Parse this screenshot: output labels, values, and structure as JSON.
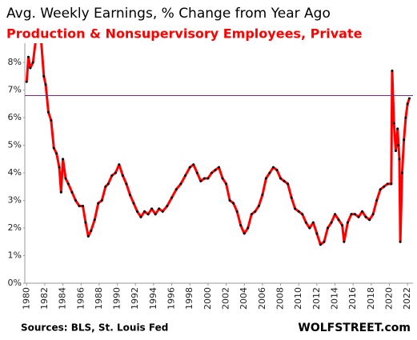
{
  "chart_data": {
    "type": "line",
    "title": "Avg. Weekly Earnings, % Change from Year Ago",
    "subtitle": "Production & Nonsupervisory  Employees, Private",
    "source": "Sources: BLS, St. Louis Fed",
    "brand": "WOLFSTREET.com",
    "x": [
      1980.0,
      1980.2,
      1980.4,
      1980.7,
      1981.0,
      1981.3,
      1981.6,
      1981.9,
      1982.1,
      1982.4,
      1982.7,
      1983.0,
      1983.3,
      1983.6,
      1983.8,
      1984.0,
      1984.3,
      1984.6,
      1985.0,
      1985.4,
      1985.8,
      1986.2,
      1986.5,
      1986.8,
      1987.1,
      1987.5,
      1987.9,
      1988.3,
      1988.7,
      1989.0,
      1989.4,
      1989.8,
      1990.2,
      1990.6,
      1991.0,
      1991.4,
      1991.8,
      1992.2,
      1992.6,
      1993.0,
      1993.4,
      1993.8,
      1994.2,
      1994.6,
      1995.0,
      1995.5,
      1996.0,
      1996.5,
      1997.0,
      1997.5,
      1998.0,
      1998.4,
      1998.8,
      1999.2,
      1999.6,
      2000.0,
      2000.4,
      2000.8,
      2001.2,
      2001.6,
      2002.0,
      2002.4,
      2002.8,
      2003.2,
      2003.6,
      2004.0,
      2004.4,
      2004.8,
      2005.2,
      2005.6,
      2006.0,
      2006.4,
      2006.8,
      2007.2,
      2007.6,
      2008.0,
      2008.4,
      2008.8,
      2009.2,
      2009.6,
      2010.0,
      2010.4,
      2010.8,
      2011.2,
      2011.6,
      2012.0,
      2012.4,
      2012.8,
      2013.2,
      2013.6,
      2014.0,
      2014.4,
      2014.8,
      2015.0,
      2015.4,
      2015.8,
      2016.2,
      2016.6,
      2017.0,
      2017.4,
      2017.8,
      2018.2,
      2018.6,
      2019.0,
      2019.4,
      2019.8,
      2020.2,
      2020.3,
      2020.5,
      2020.7,
      2020.9,
      2021.0,
      2021.1,
      2021.2,
      2021.4,
      2021.6,
      2021.8,
      2022.0,
      2022.2
    ],
    "series": [
      {
        "name": "Avg. Weekly Earnings",
        "color": "#ff0000",
        "marker_color": "#000000",
        "values": [
          7.3,
          8.2,
          7.8,
          8.0,
          8.8,
          9.2,
          8.8,
          7.5,
          7.2,
          6.2,
          5.9,
          4.9,
          4.7,
          4.2,
          3.3,
          4.5,
          3.8,
          3.6,
          3.3,
          3.0,
          2.8,
          2.8,
          2.2,
          1.7,
          1.9,
          2.3,
          2.9,
          3.0,
          3.5,
          3.6,
          3.9,
          4.0,
          4.3,
          3.9,
          3.6,
          3.2,
          2.9,
          2.6,
          2.4,
          2.6,
          2.5,
          2.7,
          2.5,
          2.7,
          2.6,
          2.8,
          3.1,
          3.4,
          3.6,
          3.9,
          4.2,
          4.3,
          4.0,
          3.7,
          3.8,
          3.8,
          4.0,
          4.1,
          4.2,
          3.8,
          3.6,
          3.0,
          2.9,
          2.6,
          2.1,
          1.8,
          2.0,
          2.5,
          2.6,
          2.8,
          3.2,
          3.8,
          4.0,
          4.2,
          4.1,
          3.8,
          3.7,
          3.6,
          3.1,
          2.7,
          2.6,
          2.5,
          2.2,
          2.0,
          2.2,
          1.8,
          1.4,
          1.5,
          2.0,
          2.2,
          2.5,
          2.3,
          2.1,
          1.5,
          2.2,
          2.5,
          2.5,
          2.4,
          2.6,
          2.4,
          2.3,
          2.5,
          3.0,
          3.4,
          3.5,
          3.6,
          3.6,
          7.7,
          5.8,
          4.8,
          5.6,
          5.0,
          4.5,
          1.5,
          4.0,
          5.2,
          6.0,
          6.5,
          6.7
        ]
      }
    ],
    "reference_line": {
      "value": 6.8,
      "color": "#7b2a7b"
    },
    "xlim": [
      1979.8,
      2022.6
    ],
    "xticks": [
      1980,
      1982,
      1984,
      1986,
      1988,
      1990,
      1992,
      1994,
      1996,
      1998,
      2000,
      2002,
      2004,
      2006,
      2008,
      2010,
      2012,
      2014,
      2016,
      2018,
      2020,
      2022
    ],
    "ylim": [
      0,
      8.7
    ],
    "yticks": [
      {
        "value": 0,
        "label": "0%"
      },
      {
        "value": 1,
        "label": "1%"
      },
      {
        "value": 2,
        "label": "2%"
      },
      {
        "value": 3,
        "label": "3%"
      },
      {
        "value": 4,
        "label": "4%"
      },
      {
        "value": 5,
        "label": "5%"
      },
      {
        "value": 6,
        "label": "6%"
      },
      {
        "value": 7,
        "label": "7%"
      },
      {
        "value": 8,
        "label": "8%"
      }
    ],
    "grid": false
  }
}
